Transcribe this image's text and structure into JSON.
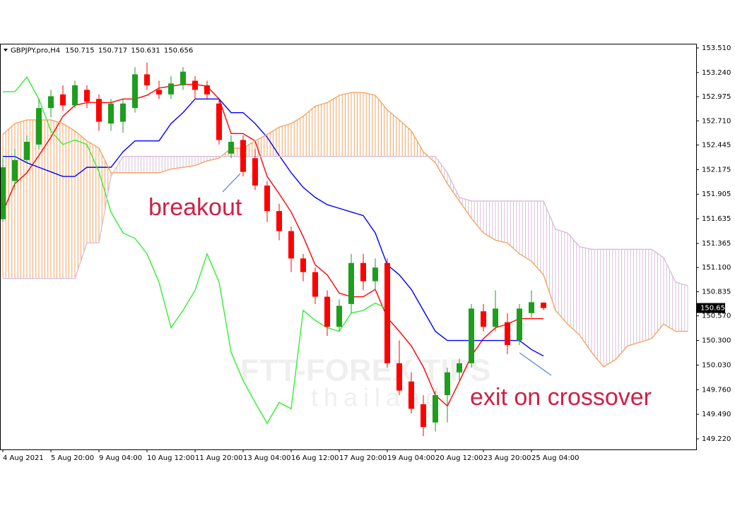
{
  "chart_data": {
    "type": "candlestick",
    "title": "GBPJPY.pro,H4",
    "watermark": "FTT-FOREX TIPS",
    "watermark_subtitle": "thailand",
    "annotations": [
      "breakout",
      "exit on crossover"
    ],
    "annotation_color": "#d11f45",
    "up_color": "#1e9e1e",
    "down_color": "#ff0000",
    "categories": [
      "4 Aug 2021",
      null,
      null,
      null,
      "5 Aug 20:00",
      null,
      null,
      null,
      "9 Aug 04:00",
      null,
      null,
      null,
      "10 Aug 12:00",
      null,
      null,
      null,
      "11 Aug 20:00",
      null,
      null,
      null,
      "13 Aug 04:00",
      null,
      null,
      null,
      "16 Aug 12:00",
      null,
      null,
      null,
      "17 Aug 20:00",
      null,
      null,
      null,
      "19 Aug 04:00",
      null,
      null,
      null,
      "20 Aug 12:00",
      null,
      null,
      null,
      "23 Aug 20:00",
      null,
      null,
      null,
      "25 Aug 04:00",
      null,
      null,
      null,
      null,
      null,
      null,
      null,
      null,
      null,
      null,
      null,
      null,
      null
    ],
    "open": [
      151.63,
      152.05,
      152.28,
      152.45,
      152.85,
      153.0,
      152.88,
      153.05,
      152.95,
      152.68,
      152.7,
      152.85,
      153.22,
      153.05,
      153.0,
      153.1,
      153.15,
      153.1,
      152.9,
      152.35,
      152.5,
      152.3,
      152.0,
      151.72,
      151.5,
      151.2,
      151.05,
      150.78,
      150.45,
      150.7,
      151.15,
      150.95,
      151.15,
      150.05,
      149.85,
      149.6,
      149.4,
      149.7,
      149.95,
      150.05,
      150.62,
      150.45,
      150.5,
      150.3,
      150.6,
      150.715,
      null,
      null,
      null,
      null,
      null,
      null,
      null,
      null,
      null,
      null,
      null,
      null
    ],
    "high": [
      152.3,
      152.4,
      152.55,
      152.95,
      153.05,
      153.1,
      153.15,
      153.1,
      153.0,
      152.95,
      152.95,
      153.3,
      153.35,
      153.15,
      153.2,
      153.3,
      153.2,
      153.15,
      152.95,
      152.55,
      152.55,
      152.4,
      152.05,
      151.8,
      151.55,
      151.25,
      151.1,
      150.85,
      150.75,
      151.25,
      151.25,
      151.2,
      151.2,
      150.3,
      149.95,
      149.7,
      149.75,
      150.0,
      150.1,
      150.7,
      150.7,
      150.85,
      150.6,
      150.7,
      150.85,
      150.717,
      null,
      null,
      null,
      null,
      null,
      null,
      null,
      null,
      null,
      null,
      null,
      null
    ],
    "low": [
      151.6,
      151.95,
      152.25,
      152.4,
      152.75,
      152.82,
      152.85,
      152.85,
      152.6,
      152.6,
      152.58,
      152.8,
      153.05,
      152.95,
      152.95,
      153.05,
      152.95,
      152.95,
      152.45,
      152.3,
      152.1,
      151.95,
      151.6,
      151.4,
      151.05,
      150.95,
      150.7,
      150.35,
      150.4,
      150.6,
      150.85,
      150.85,
      150.0,
      149.7,
      149.5,
      149.25,
      149.3,
      149.4,
      149.85,
      150.0,
      150.4,
      150.4,
      150.15,
      150.25,
      150.55,
      150.631,
      null,
      null,
      null,
      null,
      null,
      null,
      null,
      null,
      null,
      null,
      null,
      null
    ],
    "close": [
      152.2,
      152.28,
      152.48,
      152.85,
      152.98,
      152.88,
      153.1,
      152.92,
      152.7,
      152.9,
      152.9,
      153.22,
      153.1,
      153.0,
      153.12,
      153.25,
      153.05,
      153.0,
      152.5,
      152.48,
      152.15,
      152.0,
      151.72,
      151.5,
      151.2,
      151.05,
      150.78,
      150.45,
      150.68,
      151.15,
      150.95,
      151.1,
      150.05,
      149.75,
      149.55,
      149.35,
      149.7,
      149.95,
      150.05,
      150.65,
      150.45,
      150.65,
      150.25,
      150.65,
      150.72,
      150.656,
      null,
      null,
      null,
      null,
      null,
      null,
      null,
      null,
      null,
      null,
      null,
      null
    ],
    "series": [
      {
        "color": "#ff0000",
        "values": [
          151.71,
          152.02,
          152.14,
          152.33,
          152.53,
          152.76,
          152.88,
          152.91,
          152.91,
          152.91,
          152.95,
          152.95,
          152.99,
          153.07,
          153.09,
          153.11,
          153.11,
          153.09,
          152.95,
          152.57,
          152.57,
          152.49,
          152.1,
          151.91,
          151.71,
          151.44,
          151.13,
          151.02,
          150.82,
          150.78,
          150.78,
          150.86,
          150.55,
          150.4,
          150.24,
          150.01,
          149.7,
          149.58,
          149.85,
          150.13,
          150.32,
          150.44,
          150.48,
          150.54,
          150.54,
          150.54,
          null,
          null,
          null,
          null,
          null,
          null,
          null,
          null,
          null,
          null,
          null,
          null
        ]
      },
      {
        "color": "#0000ff",
        "values": [
          152.32,
          152.32,
          152.25,
          152.2,
          152.15,
          152.1,
          152.1,
          152.2,
          152.2,
          152.2,
          152.37,
          152.49,
          152.49,
          152.49,
          152.68,
          152.8,
          152.95,
          152.95,
          152.95,
          152.8,
          152.8,
          152.68,
          152.53,
          152.33,
          152.14,
          151.98,
          151.87,
          151.79,
          151.75,
          151.71,
          151.67,
          151.48,
          151.13,
          151.02,
          150.86,
          150.63,
          150.4,
          150.3,
          150.3,
          150.3,
          150.3,
          150.3,
          150.3,
          150.3,
          150.2,
          150.13,
          null,
          null,
          null,
          null,
          null,
          null,
          null,
          null,
          null,
          null,
          null,
          null
        ]
      },
      {
        "color": "#33ee33",
        "values": [
          153.03,
          153.03,
          153.19,
          152.95,
          152.6,
          152.45,
          152.5,
          152.45,
          152.15,
          151.71,
          151.48,
          151.42,
          151.25,
          150.94,
          150.44,
          150.63,
          150.85,
          151.25,
          150.94,
          150.17,
          149.86,
          149.62,
          149.39,
          149.62,
          149.55,
          150.63,
          150.52,
          150.44,
          150.4,
          150.6,
          150.63,
          150.71,
          150.65,
          null,
          null,
          null,
          null,
          null,
          null,
          null,
          null,
          null,
          null,
          null,
          null,
          null,
          null,
          null,
          null,
          null,
          null,
          null,
          null,
          null,
          null,
          null,
          null,
          null
        ]
      },
      {
        "color": "#f4a460",
        "values": [
          152.56,
          152.68,
          152.72,
          152.72,
          152.72,
          152.68,
          152.6,
          152.49,
          152.41,
          152.14,
          152.14,
          152.14,
          152.14,
          152.14,
          152.18,
          152.2,
          152.22,
          152.27,
          152.3,
          152.41,
          152.41,
          152.49,
          152.56,
          152.64,
          152.68,
          152.76,
          152.87,
          152.91,
          152.99,
          153.02,
          153.02,
          152.99,
          152.83,
          152.72,
          152.6,
          152.37,
          152.25,
          152.02,
          151.83,
          151.64,
          151.48,
          151.4,
          151.37,
          151.25,
          151.17,
          151.02,
          150.63,
          150.48,
          150.36,
          150.17,
          150.01,
          150.09,
          150.24,
          150.28,
          150.32,
          150.48,
          150.4,
          150.4
        ]
      },
      {
        "color": "#d8bfd8",
        "values": [
          150.98,
          150.98,
          150.98,
          150.98,
          150.98,
          150.98,
          150.98,
          151.37,
          151.37,
          152.1,
          152.32,
          152.32,
          152.32,
          152.32,
          152.32,
          152.32,
          152.32,
          152.32,
          152.32,
          152.32,
          152.32,
          152.32,
          152.32,
          152.32,
          152.32,
          152.32,
          152.32,
          152.32,
          152.32,
          152.32,
          152.32,
          152.32,
          152.32,
          152.32,
          152.32,
          152.32,
          152.32,
          152.14,
          151.87,
          151.83,
          151.83,
          151.83,
          151.83,
          151.83,
          151.83,
          151.83,
          151.52,
          151.48,
          151.33,
          151.3,
          151.3,
          151.3,
          151.3,
          151.3,
          151.3,
          151.21,
          150.94,
          150.9
        ]
      }
    ],
    "ylim": [
      149.104,
      153.556
    ],
    "yticks": [
      {
        "value": 153.51,
        "label": "153.510"
      },
      {
        "value": 153.24,
        "label": "153.240"
      },
      152.975,
      {
        "value": 152.71,
        "label": "152.710"
      },
      152.445,
      152.175,
      151.905,
      151.635,
      151.365,
      {
        "value": 151.1,
        "label": "151.100"
      },
      150.835,
      {
        "value": 150.57,
        "label": "150.570"
      },
      {
        "value": 150.3,
        "label": "150.300"
      },
      {
        "value": 150.03,
        "label": "150.030"
      },
      {
        "value": 149.76,
        "label": "149.760"
      },
      {
        "value": 149.49,
        "label": "149.490"
      },
      {
        "value": 149.22,
        "label": "149.220"
      }
    ]
  }
}
